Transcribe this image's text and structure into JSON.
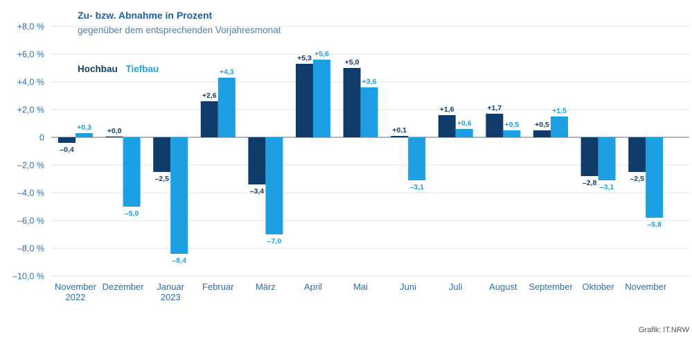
{
  "title": "Zu- bzw. Abnahme in Prozent",
  "subtitle": "gegenüber dem entsprechenden Vorjahresmonat",
  "legend": {
    "hochbau": "Hochbau",
    "tiefbau": "Tiefbau"
  },
  "source": "Grafik: IT.NRW",
  "colors": {
    "hochbau": "#0f3c6b",
    "tiefbau": "#1ca0e3",
    "axis_text": "#2a6fb5",
    "grid": "#dde3ea",
    "zero_line": "#7a8896"
  },
  "chart_data": {
    "type": "bar",
    "categories": [
      [
        "November",
        "2022"
      ],
      [
        "Dezember"
      ],
      [
        "Januar",
        "2023"
      ],
      [
        "Februar"
      ],
      [
        "März"
      ],
      [
        "April"
      ],
      [
        "Mai"
      ],
      [
        "Juni"
      ],
      [
        "Juli"
      ],
      [
        "August"
      ],
      [
        "September"
      ],
      [
        "Oktober"
      ],
      [
        "November"
      ]
    ],
    "series": [
      {
        "name": "Hochbau",
        "values": [
          -0.4,
          0.0,
          -2.5,
          2.6,
          -3.4,
          5.3,
          5.0,
          0.1,
          1.6,
          1.7,
          0.5,
          -2.8,
          -2.5
        ],
        "labels": [
          "–0,4",
          "+0,0",
          "–2,5",
          "+2,6",
          "–3,4",
          "+5,3",
          "+5,0",
          "+0,1",
          "+1,6",
          "+1,7",
          "+0,5",
          "–2,8",
          "–2,5"
        ]
      },
      {
        "name": "Tiefbau",
        "values": [
          0.3,
          -5.0,
          -8.4,
          4.3,
          -7.0,
          5.6,
          3.6,
          -3.1,
          0.6,
          0.5,
          1.5,
          -3.1,
          -5.8
        ],
        "labels": [
          "+0,3",
          "–5,0",
          "–8,4",
          "+4,3",
          "–7,0",
          "+5,6",
          "+3,6",
          "–3,1",
          "+0,6",
          "+0,5",
          "+1,5",
          "–3,1",
          "–5,8"
        ]
      }
    ],
    "ylim": [
      -10,
      8
    ],
    "yticks": [
      8,
      6,
      4,
      2,
      0,
      -2,
      -4,
      -6,
      -8,
      -10
    ],
    "ytick_labels": [
      "+8,0 %",
      "+6,0 %",
      "+4,0 %",
      "+2,0 %",
      "0",
      "–2,0 %",
      "–4,0 %",
      "–6,0 %",
      "–8,0 %",
      "–10,0 %"
    ],
    "grid": true,
    "legend_position": "top-left"
  }
}
